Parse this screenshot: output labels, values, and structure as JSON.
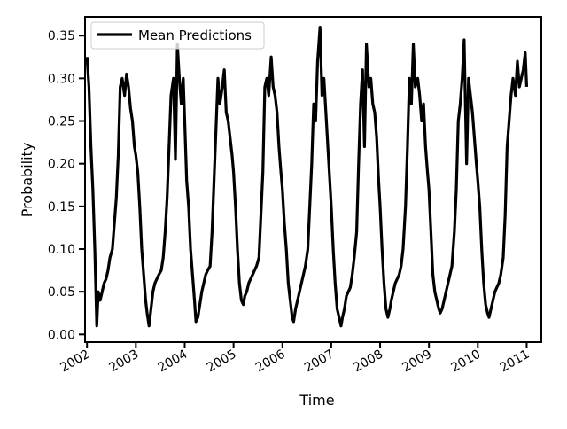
{
  "chart_data": {
    "type": "line",
    "title": "",
    "xlabel": "Time",
    "ylabel": "Probability",
    "xlim": [
      2001.96,
      2011.3
    ],
    "ylim": [
      -0.009,
      0.372
    ],
    "x_ticks": [
      2002,
      2003,
      2004,
      2005,
      2006,
      2007,
      2008,
      2009,
      2010,
      2011
    ],
    "x_tick_labels": [
      "2002",
      "2003",
      "2004",
      "2005",
      "2006",
      "2007",
      "2008",
      "2009",
      "2010",
      "2011"
    ],
    "y_ticks": [
      0.0,
      0.05,
      0.1,
      0.15,
      0.2,
      0.25,
      0.3,
      0.35
    ],
    "y_tick_labels": [
      "0.00",
      "0.05",
      "0.10",
      "0.15",
      "0.20",
      "0.25",
      "0.30",
      "0.35"
    ],
    "grid": false,
    "legend": {
      "position": "top-left",
      "entries": [
        "Mean Predictions"
      ]
    },
    "series": [
      {
        "name": "Mean Predictions",
        "color": "#000000",
        "x": [
          2002.0,
          2002.04,
          2002.08,
          2002.12,
          2002.16,
          2002.2,
          2002.23,
          2002.27,
          2002.31,
          2002.35,
          2002.39,
          2002.43,
          2002.47,
          2002.52,
          2002.56,
          2002.6,
          2002.64,
          2002.68,
          2002.72,
          2002.77,
          2002.81,
          2002.85,
          2002.89,
          2002.93,
          2002.97,
          2003.0,
          2003.04,
          2003.08,
          2003.12,
          2003.16,
          2003.2,
          2003.23,
          2003.27,
          2003.31,
          2003.35,
          2003.39,
          2003.43,
          2003.47,
          2003.52,
          2003.56,
          2003.6,
          2003.64,
          2003.68,
          2003.72,
          2003.77,
          2003.81,
          2003.85,
          2003.89,
          2003.93,
          2003.97,
          2004.0,
          2004.04,
          2004.08,
          2004.12,
          2004.16,
          2004.2,
          2004.23,
          2004.27,
          2004.31,
          2004.35,
          2004.39,
          2004.43,
          2004.47,
          2004.52,
          2004.56,
          2004.6,
          2004.64,
          2004.68,
          2004.72,
          2004.77,
          2004.81,
          2004.85,
          2004.89,
          2004.93,
          2004.97,
          2005.0,
          2005.04,
          2005.08,
          2005.12,
          2005.16,
          2005.2,
          2005.23,
          2005.27,
          2005.31,
          2005.35,
          2005.39,
          2005.43,
          2005.47,
          2005.52,
          2005.56,
          2005.6,
          2005.64,
          2005.68,
          2005.72,
          2005.77,
          2005.81,
          2005.85,
          2005.89,
          2005.93,
          2005.97,
          2006.0,
          2006.04,
          2006.08,
          2006.12,
          2006.16,
          2006.2,
          2006.23,
          2006.27,
          2006.31,
          2006.35,
          2006.39,
          2006.43,
          2006.47,
          2006.52,
          2006.56,
          2006.6,
          2006.64,
          2006.68,
          2006.72,
          2006.77,
          2006.81,
          2006.85,
          2006.89,
          2006.93,
          2006.97,
          2007.0,
          2007.04,
          2007.08,
          2007.12,
          2007.16,
          2007.2,
          2007.23,
          2007.27,
          2007.31,
          2007.35,
          2007.39,
          2007.43,
          2007.47,
          2007.52,
          2007.56,
          2007.6,
          2007.64,
          2007.68,
          2007.72,
          2007.77,
          2007.81,
          2007.85,
          2007.89,
          2007.93,
          2007.97,
          2008.0,
          2008.04,
          2008.08,
          2008.12,
          2008.16,
          2008.2,
          2008.23,
          2008.27,
          2008.31,
          2008.35,
          2008.39,
          2008.43,
          2008.47,
          2008.52,
          2008.56,
          2008.6,
          2008.64,
          2008.68,
          2008.72,
          2008.77,
          2008.81,
          2008.85,
          2008.89,
          2008.93,
          2008.97,
          2009.0,
          2009.04,
          2009.08,
          2009.12,
          2009.16,
          2009.2,
          2009.23,
          2009.27,
          2009.31,
          2009.35,
          2009.39,
          2009.43,
          2009.47,
          2009.52,
          2009.56,
          2009.6,
          2009.64,
          2009.68,
          2009.72,
          2009.77,
          2009.81,
          2009.85,
          2009.89,
          2009.93,
          2009.97,
          2010.0,
          2010.04,
          2010.08,
          2010.12,
          2010.16,
          2010.2,
          2010.23,
          2010.27,
          2010.31,
          2010.35,
          2010.39,
          2010.43,
          2010.47,
          2010.52,
          2010.56,
          2010.6,
          2010.64,
          2010.68,
          2010.72,
          2010.77,
          2010.81,
          2010.85,
          2010.89,
          2010.93,
          2010.97,
          2011.0
        ],
        "y": [
          0.325,
          0.29,
          0.22,
          0.17,
          0.1,
          0.01,
          0.05,
          0.04,
          0.05,
          0.06,
          0.065,
          0.075,
          0.09,
          0.1,
          0.13,
          0.16,
          0.21,
          0.29,
          0.3,
          0.28,
          0.305,
          0.29,
          0.265,
          0.25,
          0.22,
          0.21,
          0.19,
          0.15,
          0.1,
          0.07,
          0.04,
          0.025,
          0.01,
          0.03,
          0.05,
          0.06,
          0.065,
          0.07,
          0.075,
          0.09,
          0.12,
          0.16,
          0.22,
          0.28,
          0.3,
          0.205,
          0.34,
          0.3,
          0.27,
          0.3,
          0.25,
          0.18,
          0.15,
          0.1,
          0.07,
          0.04,
          0.015,
          0.02,
          0.035,
          0.05,
          0.06,
          0.07,
          0.075,
          0.08,
          0.12,
          0.18,
          0.24,
          0.3,
          0.27,
          0.29,
          0.31,
          0.26,
          0.25,
          0.23,
          0.21,
          0.19,
          0.15,
          0.1,
          0.06,
          0.04,
          0.035,
          0.045,
          0.05,
          0.06,
          0.065,
          0.07,
          0.075,
          0.08,
          0.09,
          0.14,
          0.19,
          0.29,
          0.3,
          0.28,
          0.325,
          0.29,
          0.28,
          0.26,
          0.22,
          0.19,
          0.17,
          0.13,
          0.1,
          0.06,
          0.04,
          0.02,
          0.015,
          0.03,
          0.04,
          0.05,
          0.06,
          0.07,
          0.08,
          0.1,
          0.15,
          0.2,
          0.27,
          0.25,
          0.32,
          0.36,
          0.28,
          0.3,
          0.26,
          0.22,
          0.18,
          0.15,
          0.1,
          0.06,
          0.03,
          0.02,
          0.01,
          0.02,
          0.03,
          0.045,
          0.05,
          0.055,
          0.07,
          0.09,
          0.12,
          0.2,
          0.27,
          0.31,
          0.22,
          0.34,
          0.29,
          0.3,
          0.27,
          0.26,
          0.23,
          0.18,
          0.15,
          0.1,
          0.06,
          0.03,
          0.02,
          0.03,
          0.04,
          0.05,
          0.06,
          0.065,
          0.07,
          0.08,
          0.1,
          0.15,
          0.22,
          0.3,
          0.27,
          0.34,
          0.29,
          0.3,
          0.28,
          0.25,
          0.27,
          0.22,
          0.19,
          0.17,
          0.12,
          0.07,
          0.05,
          0.04,
          0.03,
          0.025,
          0.03,
          0.04,
          0.05,
          0.06,
          0.07,
          0.08,
          0.12,
          0.17,
          0.25,
          0.27,
          0.3,
          0.345,
          0.2,
          0.3,
          0.28,
          0.26,
          0.23,
          0.2,
          0.18,
          0.15,
          0.1,
          0.06,
          0.035,
          0.025,
          0.02,
          0.03,
          0.04,
          0.05,
          0.055,
          0.06,
          0.07,
          0.09,
          0.14,
          0.22,
          0.25,
          0.28,
          0.3,
          0.28,
          0.32,
          0.29,
          0.3,
          0.31,
          0.33,
          0.29
        ]
      }
    ]
  }
}
